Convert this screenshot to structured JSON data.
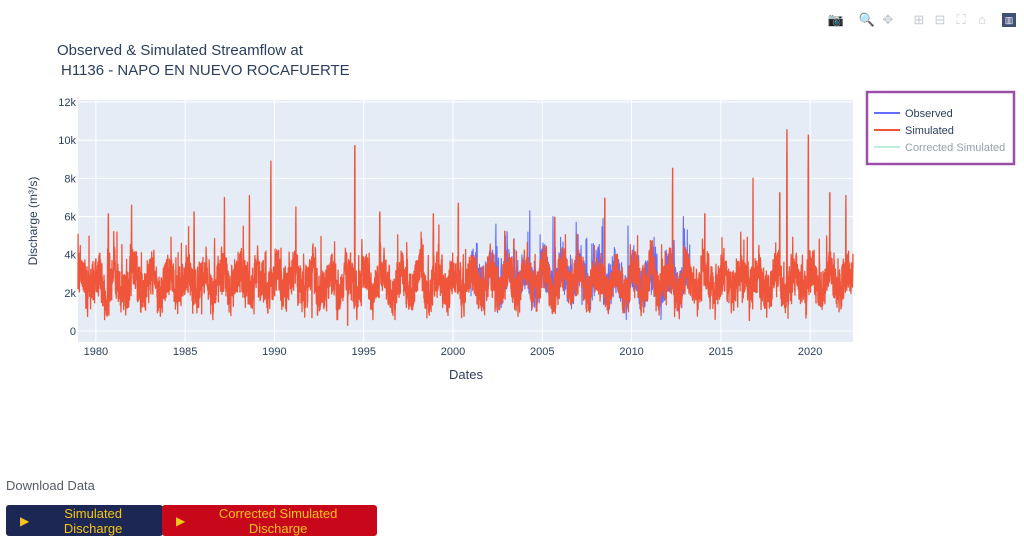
{
  "toolbar": {
    "icons": [
      "camera-icon",
      "zoom-icon",
      "pan-icon",
      "zoom-in-icon",
      "zoom-out-icon",
      "autoscale-icon",
      "home-icon",
      "plotly-logo-icon"
    ],
    "glyphs": [
      "📷",
      "🔍",
      "✥",
      "⊞",
      "⊟",
      "⛶",
      "⌂",
      "▥"
    ]
  },
  "chart_data": {
    "type": "line",
    "title": "Observed & Simulated Streamflow at",
    "subtitle": "H1136 - NAPO EN NUEVO ROCAFUERTE",
    "xlabel": "Dates",
    "ylabel": "Discharge (m³/s)",
    "xlim": [
      1979.0,
      2022.4
    ],
    "ylim": [
      0,
      12200
    ],
    "x_ticks": [
      1980,
      1985,
      1990,
      1995,
      2000,
      2005,
      2010,
      2015,
      2020
    ],
    "x_tick_labels": [
      "1980",
      "1985",
      "1990",
      "1995",
      "2000",
      "2005",
      "2010",
      "2015",
      "2020"
    ],
    "y_ticks": [
      0,
      2000,
      4000,
      6000,
      8000,
      10000,
      12000
    ],
    "y_tick_labels": [
      "0",
      "2k",
      "4k",
      "6k",
      "8k",
      "10k",
      "12k"
    ],
    "grid": true,
    "legend_position": "top-right, outside plot",
    "series": [
      {
        "name": "Observed",
        "color": "#636efa",
        "x_range": [
          2001.0,
          2013.3
        ],
        "base": 2300,
        "amplitude": 2900,
        "peaks": [
          [
            2002.4,
            5600
          ],
          [
            2004.3,
            6300
          ],
          [
            2005.6,
            6000
          ],
          [
            2006.9,
            5700
          ],
          [
            2008.4,
            5900
          ],
          [
            2009.8,
            5500
          ],
          [
            2012.9,
            6000
          ]
        ]
      },
      {
        "name": "Simulated",
        "color": "#ef553b",
        "x_range": [
          1979.0,
          2022.4
        ],
        "base": 2100,
        "amplitude": 3100,
        "peaks": [
          [
            1980.7,
            6700
          ],
          [
            1982.0,
            6600
          ],
          [
            1985.5,
            6800
          ],
          [
            1987.2,
            7000
          ],
          [
            1988.6,
            7100
          ],
          [
            1989.8,
            8900
          ],
          [
            1991.2,
            6500
          ],
          [
            1994.5,
            10600
          ],
          [
            1995.9,
            6800
          ],
          [
            1998.9,
            6700
          ],
          [
            2000.3,
            7300
          ],
          [
            2002.9,
            5700
          ],
          [
            2005.7,
            6500
          ],
          [
            2008.5,
            7600
          ],
          [
            2012.3,
            9300
          ],
          [
            2014.1,
            6700
          ],
          [
            2016.8,
            8000
          ],
          [
            2018.3,
            7900
          ],
          [
            2018.7,
            11500
          ],
          [
            2019.9,
            11200
          ],
          [
            2021.1,
            7900
          ],
          [
            2022.0,
            7100
          ]
        ],
        "lows": [
          [
            1994.1,
            300
          ],
          [
            1992.1,
            700
          ],
          [
            2016.6,
            550
          ]
        ]
      },
      {
        "name": "Corrected Simulated",
        "color": "#7fdfb7",
        "visible": "legendonly"
      }
    ]
  },
  "legend": {
    "items": [
      "Observed",
      "Simulated",
      "Corrected Simulated"
    ],
    "colors": [
      "#636efa",
      "#ef553b",
      "#7fdfb7"
    ]
  },
  "download": {
    "title": "Download Data",
    "simulated_label": "Simulated Discharge",
    "corrected_label": "Corrected Simulated Discharge",
    "play_glyph": "▶"
  }
}
